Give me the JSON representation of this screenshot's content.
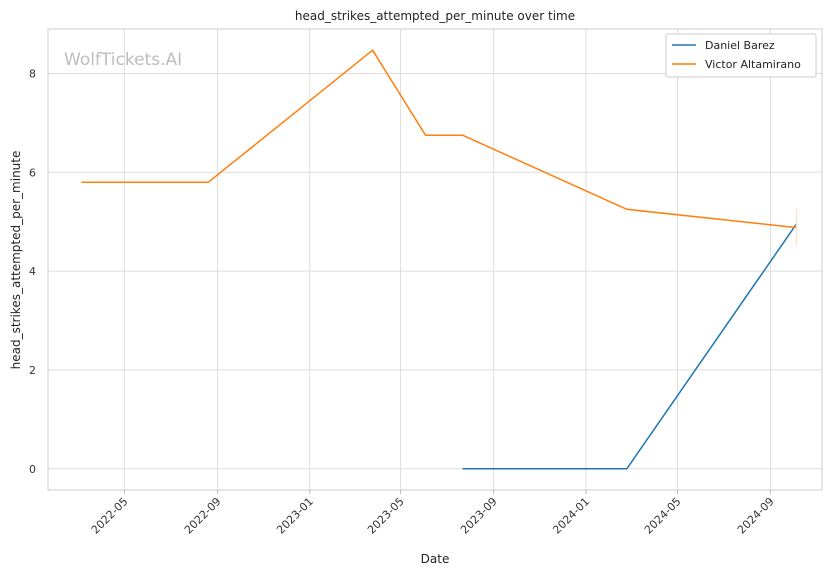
{
  "chart_data": {
    "type": "line",
    "title": "head_strikes_attempted_per_minute over time",
    "xlabel": "Date",
    "ylabel": "head_strikes_attempted_per_minute",
    "watermark": "WolfTickets.AI",
    "x_tick_labels": [
      "2022-05",
      "2022-09",
      "2023-01",
      "2023-05",
      "2023-09",
      "2024-01",
      "2024-05",
      "2024-09"
    ],
    "y_tick_labels": [
      "0",
      "2",
      "4",
      "6",
      "8"
    ],
    "xlim": [
      "2022-01-20",
      "2024-11-08"
    ],
    "ylim": [
      -0.43,
      8.9
    ],
    "grid": true,
    "legend_position": "top-right",
    "series": [
      {
        "name": "Daniel Barez",
        "color": "#1f77b4",
        "x": [
          "2023-07-22",
          "2024-02-24",
          "2024-10-05"
        ],
        "values": [
          0.0,
          0.0,
          4.95
        ]
      },
      {
        "name": "Victor Altamirano",
        "color": "#ff7f0e",
        "x": [
          "2022-03-05",
          "2022-08-20",
          "2023-03-25",
          "2023-06-03",
          "2023-07-22",
          "2024-02-24",
          "2024-10-05"
        ],
        "values": [
          5.8,
          5.8,
          8.47,
          6.75,
          6.75,
          5.25,
          4.88
        ]
      }
    ]
  }
}
